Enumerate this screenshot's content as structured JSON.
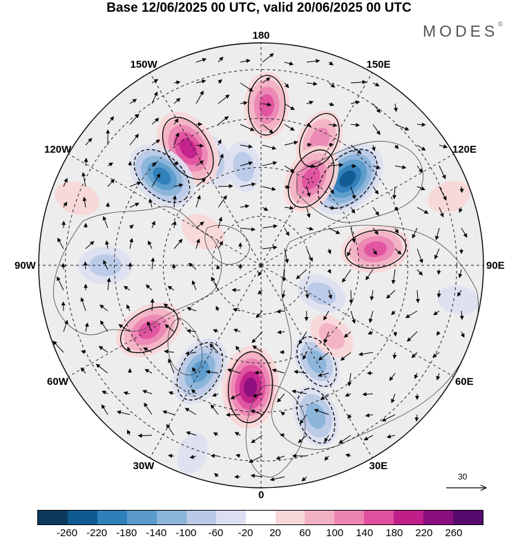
{
  "title": "Base 12/06/2025 00 UTC, valid 20/06/2025 00 UTC",
  "brand": "MODES",
  "brand_mark": "©",
  "longitude_labels": [
    {
      "id": "lon-180",
      "text": "180",
      "angle_deg": 180
    },
    {
      "id": "lon-150e",
      "text": "150E",
      "angle_deg": 150
    },
    {
      "id": "lon-120e",
      "text": "120E",
      "angle_deg": 120
    },
    {
      "id": "lon-90e",
      "text": "90E",
      "angle_deg": 90
    },
    {
      "id": "lon-60e",
      "text": "60E",
      "angle_deg": 60
    },
    {
      "id": "lon-30e",
      "text": "30E",
      "angle_deg": 30
    },
    {
      "id": "lon-0",
      "text": "0",
      "angle_deg": 0
    },
    {
      "id": "lon-30w",
      "text": "30W",
      "angle_deg": -30
    },
    {
      "id": "lon-60w",
      "text": "60W",
      "angle_deg": -60
    },
    {
      "id": "lon-90w",
      "text": "90W",
      "angle_deg": -90
    },
    {
      "id": "lon-120w",
      "text": "120W",
      "angle_deg": -120
    },
    {
      "id": "lon-150w",
      "text": "150W",
      "angle_deg": -150
    }
  ],
  "reference_vector_label": "30",
  "colorbar": {
    "colors": [
      "#0b3a5e",
      "#0f5a8f",
      "#2f7fb8",
      "#5a9bcb",
      "#8ab4da",
      "#b9c9e6",
      "#dcdff0",
      "#ffffff",
      "#f8d7d8",
      "#f2b2c4",
      "#ec85b3",
      "#e0509f",
      "#c01f8a",
      "#8a0f7e",
      "#55086e"
    ],
    "tick_labels": [
      "-260",
      "-220",
      "-180",
      "-140",
      "-100",
      "-60",
      "-20",
      "20",
      "60",
      "100",
      "140",
      "180",
      "220",
      "260"
    ]
  },
  "anomaly_centers": [
    {
      "lon_deg": 178,
      "dist": 0.72,
      "value": 140
    },
    {
      "lon_deg": 155,
      "dist": 0.62,
      "value": 120
    },
    {
      "lon_deg": 135,
      "dist": 0.55,
      "value": -220
    },
    {
      "lon_deg": 98,
      "dist": 0.52,
      "value": 150
    },
    {
      "lon_deg": 150,
      "dist": 0.45,
      "value": 160
    },
    {
      "lon_deg": 190,
      "dist": 0.45,
      "value": -60
    },
    {
      "lon_deg": 205,
      "dist": 0.52,
      "value": -80
    },
    {
      "lon_deg": 212,
      "dist": 0.62,
      "value": 200
    },
    {
      "lon_deg": 228,
      "dist": 0.6,
      "value": -180
    },
    {
      "lon_deg": 270,
      "dist": 0.7,
      "value": -80
    },
    {
      "lon_deg": 240,
      "dist": 0.3,
      "value": 40
    },
    {
      "lon_deg": 300,
      "dist": 0.58,
      "value": 160
    },
    {
      "lon_deg": 330,
      "dist": 0.55,
      "value": -160
    },
    {
      "lon_deg": 355,
      "dist": 0.55,
      "value": 220
    },
    {
      "lon_deg": 20,
      "dist": 0.72,
      "value": -120
    },
    {
      "lon_deg": 30,
      "dist": 0.5,
      "value": -100
    },
    {
      "lon_deg": 45,
      "dist": 0.45,
      "value": 60
    },
    {
      "lon_deg": 65,
      "dist": 0.3,
      "value": -60
    },
    {
      "lon_deg": 80,
      "dist": 0.9,
      "value": -20
    },
    {
      "lon_deg": 110,
      "dist": 0.9,
      "value": 30
    },
    {
      "lon_deg": 250,
      "dist": 0.88,
      "value": 40
    },
    {
      "lon_deg": 340,
      "dist": 0.9,
      "value": -20
    }
  ]
}
